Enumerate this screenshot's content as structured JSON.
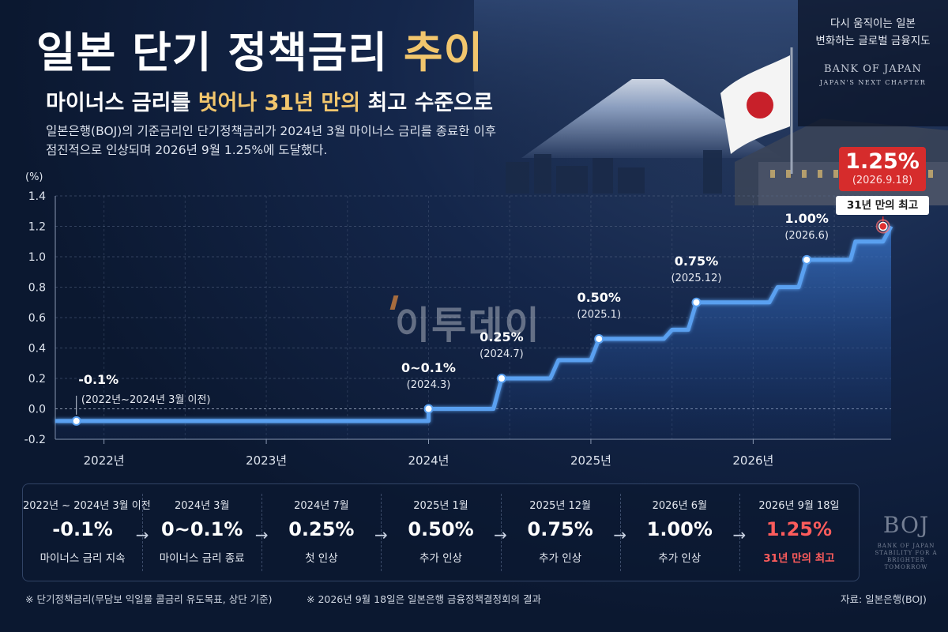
{
  "header": {
    "title_main": "일본 단기 정책금리",
    "title_highlight": "추이",
    "subtitle_pre": "마이너스 금리를",
    "subtitle_highlight": "벗어나 31년 만의",
    "subtitle_post": "최고 수준으로",
    "desc_line1": "일본은행(BOJ)의 기준금리인 단기정책금리가 2024년 3월 마이너스 금리를 종료한 이후",
    "desc_line2": "점진적으로 인상되며 2026년 9월 1.25%에 도달했다."
  },
  "top_right": {
    "line1": "다시 움직이는 일본",
    "line2": "변화하는 글로벌 금융지도",
    "org": "BANK OF JAPAN",
    "tagline": "JAPAN'S NEXT CHAPTER"
  },
  "watermark": "이투데이",
  "chart_data": {
    "type": "line",
    "ylabel": "(%)",
    "ylim": [
      -0.2,
      1.4
    ],
    "yticks": [
      "1.4",
      "1.2",
      "1.0",
      "0.8",
      "0.6",
      "0.4",
      "0.2",
      "0.0",
      "-0.2"
    ],
    "ytick_values": [
      1.4,
      1.2,
      1.0,
      0.8,
      0.6,
      0.4,
      0.2,
      0.0,
      -0.2
    ],
    "xticks": [
      "2022년",
      "2023년",
      "2024년",
      "2025년",
      "2026년"
    ],
    "xtick_values": [
      2022.0,
      2023.0,
      2024.0,
      2025.0,
      2026.0
    ],
    "xlim": [
      2021.7,
      2026.85
    ],
    "grid": true,
    "line_color": "#5aa0f0",
    "highlight_color": "#e03030",
    "series": [
      {
        "x": [
          2021.7,
          2024.0,
          2024.0,
          2024.4,
          2024.45,
          2024.75,
          2024.8,
          2025.0,
          2025.05,
          2025.45,
          2025.5,
          2025.6,
          2025.65,
          2026.1,
          2026.15,
          2026.28,
          2026.33,
          2026.6,
          2026.63,
          2026.8,
          2026.85
        ],
        "y": [
          -0.08,
          -0.08,
          0.0,
          0.0,
          0.2,
          0.2,
          0.32,
          0.32,
          0.46,
          0.46,
          0.52,
          0.52,
          0.7,
          0.7,
          0.8,
          0.8,
          0.98,
          0.98,
          1.1,
          1.1,
          1.2
        ]
      }
    ],
    "annotations": [
      {
        "x": 2021.83,
        "y": -0.08,
        "value": "-0.1%",
        "date": "(2022년~2024년 3월 이전)"
      },
      {
        "x": 2024.0,
        "y": 0.0,
        "value": "0~0.1%",
        "date": "(2024.3)"
      },
      {
        "x": 2024.45,
        "y": 0.2,
        "value": "0.25%",
        "date": "(2024.7)"
      },
      {
        "x": 2025.05,
        "y": 0.46,
        "value": "0.50%",
        "date": "(2025.1)"
      },
      {
        "x": 2025.65,
        "y": 0.7,
        "value": "0.75%",
        "date": "(2025.12)"
      },
      {
        "x": 2026.33,
        "y": 0.98,
        "value": "1.00%",
        "date": "(2026.6)"
      }
    ],
    "highlight": {
      "x": 2026.8,
      "y": 1.2,
      "value": "1.25%",
      "date": "(2026.9.18)",
      "tag": "31년 만의 최고"
    }
  },
  "timeline": [
    {
      "date": "2022년 ~ 2024년 3월 이전",
      "value": "-0.1%",
      "note": "마이너스 금리 지속"
    },
    {
      "date": "2024년 3월",
      "value": "0~0.1%",
      "note": "마이너스 금리 종료"
    },
    {
      "date": "2024년 7월",
      "value": "0.25%",
      "note": "첫 인상"
    },
    {
      "date": "2025년 1월",
      "value": "0.50%",
      "note": "추가 인상"
    },
    {
      "date": "2025년 12월",
      "value": "0.75%",
      "note": "추가 인상"
    },
    {
      "date": "2026년 6월",
      "value": "1.00%",
      "note": "추가 인상"
    },
    {
      "date": "2026년 9월 18일",
      "value": "1.25%",
      "note": "31년 만의 최고"
    }
  ],
  "logo": {
    "mark": "BOJ",
    "org": "BANK OF JAPAN",
    "tag1": "STABILITY FOR A",
    "tag2": "BRIGHTER TOMORROW"
  },
  "footer": {
    "note1": "※ 단기정책금리(무담보 익일물 콜금리 유도목표, 상단 기준)",
    "note2": "※ 2026년 9월 18일은 일본은행 금융정책결정회의 결과",
    "source": "자료: 일본은행(BOJ)"
  }
}
